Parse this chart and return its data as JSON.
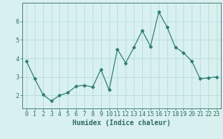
{
  "x": [
    0,
    1,
    2,
    3,
    4,
    5,
    6,
    7,
    8,
    9,
    10,
    11,
    12,
    13,
    14,
    15,
    16,
    17,
    18,
    19,
    20,
    21,
    22,
    23
  ],
  "y": [
    3.85,
    2.9,
    2.05,
    1.7,
    2.0,
    2.15,
    2.5,
    2.55,
    2.45,
    3.4,
    2.3,
    4.5,
    3.75,
    4.6,
    5.5,
    4.65,
    6.5,
    5.7,
    4.6,
    4.3,
    3.85,
    2.9,
    2.95,
    3.0
  ],
  "line_color": "#2e7d6e",
  "marker": "D",
  "marker_size": 2.5,
  "bg_color": "#d8f0f0",
  "grid_color": "#b8dada",
  "xlabel": "Humidex (Indice chaleur)",
  "xlabel_fontsize": 7,
  "tick_fontsize": 6,
  "ylim": [
    1.3,
    7.0
  ],
  "xlim": [
    -0.5,
    23.5
  ],
  "yticks": [
    2,
    3,
    4,
    5,
    6
  ],
  "xticks": [
    0,
    1,
    2,
    3,
    4,
    5,
    6,
    7,
    8,
    9,
    10,
    11,
    12,
    13,
    14,
    15,
    16,
    17,
    18,
    19,
    20,
    21,
    22,
    23
  ]
}
